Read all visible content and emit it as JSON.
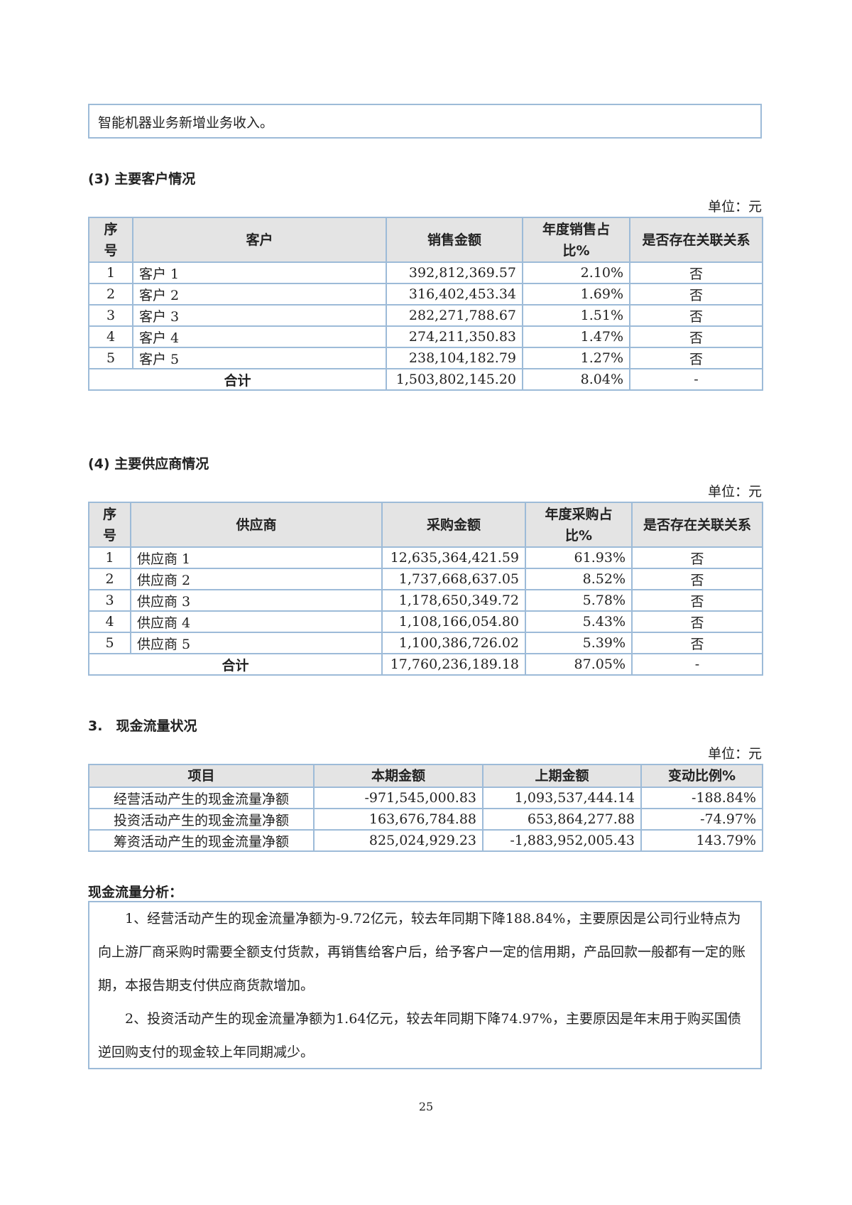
{
  "intro_box": {
    "text": "智能机器业务新增业务收入。"
  },
  "customers": {
    "heading": "(3) 主要客户情况",
    "unit": "单位：元",
    "headers": [
      "序号",
      "客户",
      "销售金额",
      "年度销售占比%",
      "是否存在关联关系"
    ],
    "rows": [
      {
        "no": "1",
        "name": "客户 1",
        "amount": "392,812,369.57",
        "ratio": "2.10%",
        "related": "否"
      },
      {
        "no": "2",
        "name": "客户 2",
        "amount": "316,402,453.34",
        "ratio": "1.69%",
        "related": "否"
      },
      {
        "no": "3",
        "name": "客户 3",
        "amount": "282,271,788.67",
        "ratio": "1.51%",
        "related": "否"
      },
      {
        "no": "4",
        "name": "客户 4",
        "amount": "274,211,350.83",
        "ratio": "1.47%",
        "related": "否"
      },
      {
        "no": "5",
        "name": "客户 5",
        "amount": "238,104,182.79",
        "ratio": "1.27%",
        "related": "否"
      }
    ],
    "total": {
      "label": "合计",
      "amount": "1,503,802,145.20",
      "ratio": "8.04%",
      "related": "-"
    }
  },
  "suppliers": {
    "heading": "(4) 主要供应商情况",
    "unit": "单位：元",
    "headers": [
      "序号",
      "供应商",
      "采购金额",
      "年度采购占比%",
      "是否存在关联关系"
    ],
    "rows": [
      {
        "no": "1",
        "name": "供应商 1",
        "amount": "12,635,364,421.59",
        "ratio": "61.93%",
        "related": "否"
      },
      {
        "no": "2",
        "name": "供应商 2",
        "amount": "1,737,668,637.05",
        "ratio": "8.52%",
        "related": "否"
      },
      {
        "no": "3",
        "name": "供应商 3",
        "amount": "1,178,650,349.72",
        "ratio": "5.78%",
        "related": "否"
      },
      {
        "no": "4",
        "name": "供应商 4",
        "amount": "1,108,166,054.80",
        "ratio": "5.43%",
        "related": "否"
      },
      {
        "no": "5",
        "name": "供应商 5",
        "amount": "1,100,386,726.02",
        "ratio": "5.39%",
        "related": "否"
      }
    ],
    "total": {
      "label": "合计",
      "amount": "17,760,236,189.18",
      "ratio": "87.05%",
      "related": "-"
    }
  },
  "cashflow": {
    "heading": "3.　现金流量状况",
    "unit": "单位：元",
    "headers": [
      "项目",
      "本期金额",
      "上期金额",
      "变动比例%"
    ],
    "rows": [
      {
        "item": "经营活动产生的现金流量净额",
        "current": "-971,545,000.83",
        "previous": "1,093,537,444.14",
        "change": "-188.84%"
      },
      {
        "item": "投资活动产生的现金流量净额",
        "current": "163,676,784.88",
        "previous": "653,864,277.88",
        "change": "-74.97%"
      },
      {
        "item": "筹资活动产生的现金流量净额",
        "current": "825,024,929.23",
        "previous": "-1,883,952,005.43",
        "change": "143.79%"
      }
    ]
  },
  "analysis": {
    "heading": "现金流量分析：",
    "paragraphs": [
      "1、经营活动产生的现金流量净额为-9.72亿元，较去年同期下降188.84%，主要原因是公司行业特点为向上游厂商采购时需要全额支付货款，再销售给客户后，给予客户一定的信用期，产品回款一般都有一定的账期，本报告期支付供应商货款增加。",
      "2、投资活动产生的现金流量净额为1.64亿元，较去年同期下降74.97%，主要原因是年末用于购买国债逆回购支付的现金较上年同期减少。"
    ]
  },
  "page_number": "25"
}
